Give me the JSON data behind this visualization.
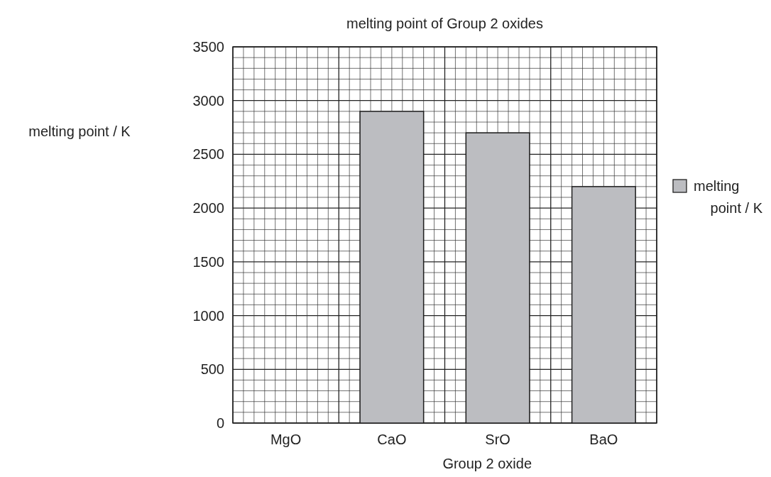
{
  "chart_data": {
    "type": "bar",
    "title": "melting point of Group 2 oxides",
    "xlabel": "Group 2 oxide",
    "ylabel": "melting point / K",
    "categories": [
      "MgO",
      "CaO",
      "SrO",
      "BaO"
    ],
    "series": [
      {
        "name": "melting point / K",
        "color": "#bcbdc1",
        "values": [
          null,
          2900,
          2700,
          2200
        ]
      }
    ],
    "ylim": [
      0,
      3500
    ],
    "yticks": [
      0,
      500,
      1000,
      1500,
      2000,
      2500,
      3000,
      3500
    ],
    "grid": true,
    "legend": "right"
  }
}
